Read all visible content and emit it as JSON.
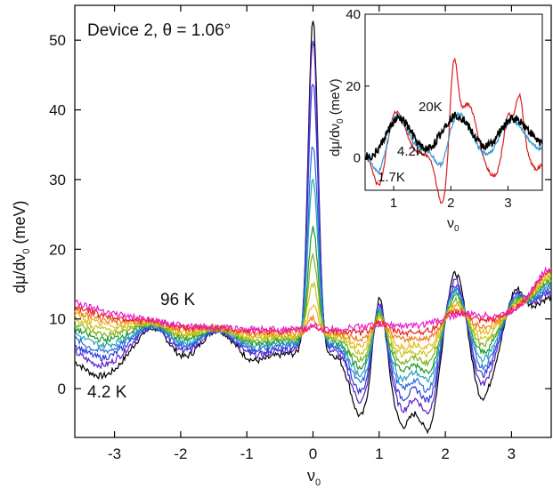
{
  "chart_data": [
    {
      "type": "line",
      "annotation_title": "Device 2,  θ = 1.06°",
      "xlabel": "ν",
      "xlabel_sub": "0",
      "ylabel": "dμ/dν",
      "ylabel_sub": "0",
      "ylabel_tail": " (meV)",
      "xlim": [
        -3.6,
        3.6
      ],
      "ylim": [
        -7,
        55
      ],
      "xticks": [
        -3,
        -2,
        -1,
        0,
        1,
        2,
        3
      ],
      "yticks": [
        0,
        10,
        20,
        30,
        40,
        50
      ],
      "grid": false,
      "curve_labels": [
        {
          "text": "96 K",
          "color": "#e81ed0"
        },
        {
          "text": "4.2 K",
          "color": "#000000"
        }
      ],
      "temperature_series": [
        {
          "color": "#000000",
          "peak_at_zero": 53
        },
        {
          "color": "#5a1ec8",
          "peak_at_zero": 50
        },
        {
          "color": "#2e3fd6",
          "peak_at_zero": 44
        },
        {
          "color": "#2a70d9",
          "peak_at_zero": 35
        },
        {
          "color": "#26a3b8",
          "peak_at_zero": 30
        },
        {
          "color": "#1e9a2a",
          "peak_at_zero": 23
        },
        {
          "color": "#7fb21e",
          "peak_at_zero": 19
        },
        {
          "color": "#c8c81e",
          "peak_at_zero": 15
        },
        {
          "color": "#e8b81a",
          "peak_at_zero": 12
        },
        {
          "color": "#f07a1e",
          "peak_at_zero": 10
        },
        {
          "color": "#e81e1e",
          "peak_at_zero": 9
        },
        {
          "color": "#e81ed0",
          "peak_at_zero": 9
        }
      ]
    },
    {
      "type": "line",
      "inset": true,
      "xlabel": "ν",
      "xlabel_sub": "0",
      "ylabel": "dμ/dν",
      "ylabel_sub": "0",
      "ylabel_tail": " (meV)",
      "xlim": [
        0.5,
        3.6
      ],
      "ylim": [
        -9,
        40
      ],
      "xticks": [
        1,
        2,
        3
      ],
      "yticks": [
        0,
        20,
        40
      ],
      "series": [
        {
          "name": "20K",
          "color": "#000000"
        },
        {
          "name": "4.2K",
          "color": "#3a9ad0"
        },
        {
          "name": "1.7K",
          "color": "#d81e1e"
        }
      ]
    }
  ]
}
